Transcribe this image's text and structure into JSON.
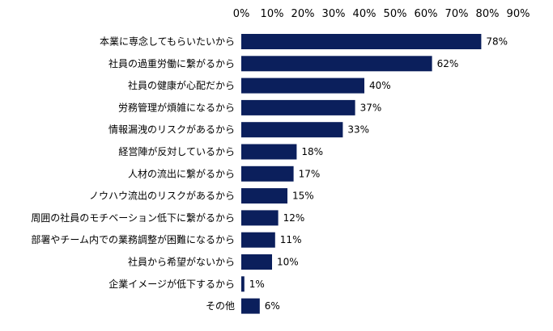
{
  "chart_data": {
    "type": "bar",
    "orientation": "horizontal",
    "categories": [
      "本業に専念してもらいたいから",
      "社員の過重労働に繋がるから",
      "社員の健康が心配だから",
      "労務管理が煩雑になるから",
      "情報漏洩のリスクがあるから",
      "経営陣が反対しているから",
      "人材の流出に繋がるから",
      "ノウハウ流出のリスクがあるから",
      "周囲の社員のモチベーション低下に繋がるから",
      "部署やチーム内での業務調整が困難になるから",
      "社員から希望がないから",
      "企業イメージが低下するから",
      "その他"
    ],
    "values": [
      78,
      62,
      40,
      37,
      33,
      18,
      17,
      15,
      12,
      11,
      10,
      1,
      6
    ],
    "value_labels": [
      "78%",
      "62%",
      "40%",
      "37%",
      "33%",
      "18%",
      "17%",
      "15%",
      "12%",
      "11%",
      "10%",
      "1%",
      "6%"
    ],
    "xlim": [
      0,
      90
    ],
    "x_ticks": [
      0,
      10,
      20,
      30,
      40,
      50,
      60,
      70,
      80,
      90
    ],
    "x_tick_labels": [
      "0%",
      "10%",
      "20%",
      "30%",
      "40%",
      "50%",
      "60%",
      "70%",
      "80%",
      "90%"
    ],
    "x_axis_position": "top",
    "grid": false,
    "title": "",
    "xlabel": "",
    "ylabel": "",
    "bar_color": "#0b1f5c"
  }
}
